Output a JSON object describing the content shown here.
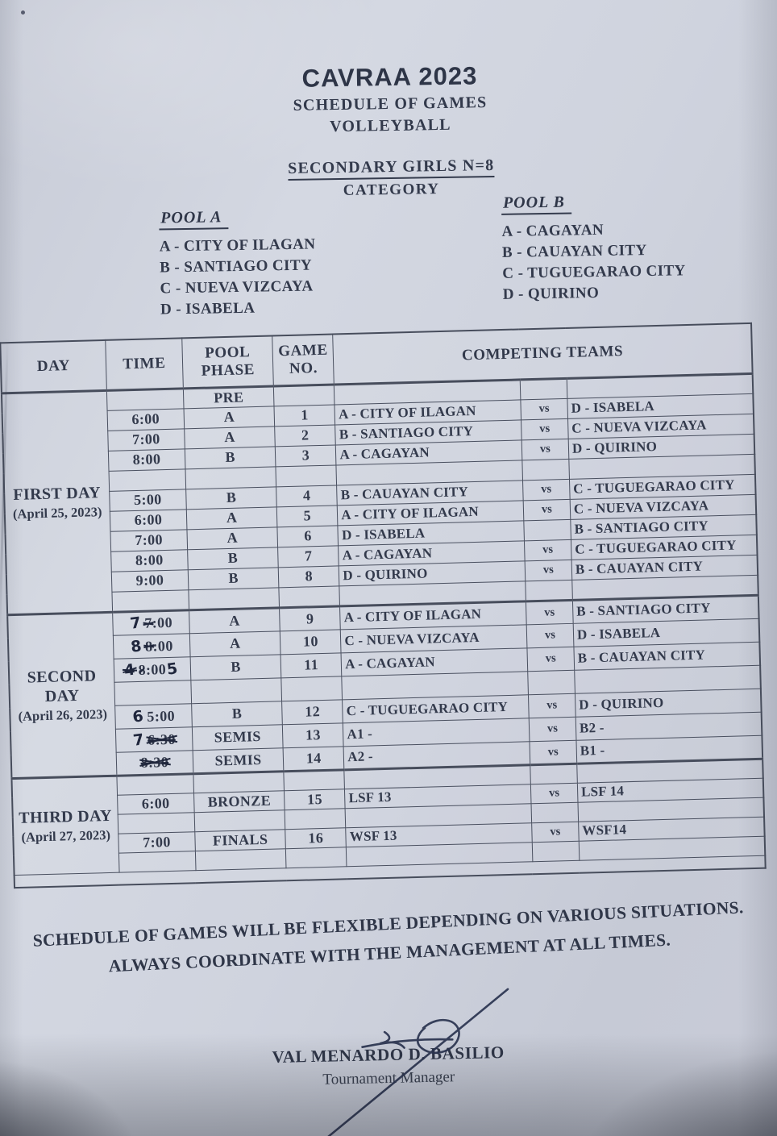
{
  "title": {
    "event": "CAVRAA 2023",
    "subtitle": "SCHEDULE OF GAMES",
    "sport": "VOLLEYBALL",
    "category": "SECONDARY GIRLS N=8",
    "category_word": "CATEGORY"
  },
  "pools": {
    "a": {
      "label": "POOL A",
      "teams": [
        "A - CITY OF ILAGAN",
        "B - SANTIAGO CITY",
        "C - NUEVA VIZCAYA",
        "D - ISABELA"
      ]
    },
    "b": {
      "label": "POOL B",
      "teams": [
        "A - CAGAYAN",
        "B - CAUAYAN CITY",
        "C - TUGUEGARAO CITY",
        "D - QUIRINO"
      ]
    }
  },
  "schedule_table": {
    "headers": {
      "day": "DAY",
      "time": "TIME",
      "phase": "POOL PHASE",
      "game": "GAME NO.",
      "teams": "COMPETING TEAMS"
    },
    "sections": [
      {
        "day": "FIRST DAY",
        "date": "(April 25, 2023)",
        "rows": [
          {
            "phase": "PRE"
          },
          {
            "time": "6:00",
            "phase": "A",
            "game": "1",
            "team1": "A - CITY OF ILAGAN",
            "vs": "vs",
            "team2": "D - ISABELA"
          },
          {
            "time": "7:00",
            "phase": "A",
            "game": "2",
            "team1": "B - SANTIAGO CITY",
            "vs": "vs",
            "team2": "C - NUEVA VIZCAYA"
          },
          {
            "time": "8:00",
            "phase": "B",
            "game": "3",
            "team1": "A - CAGAYAN",
            "vs": "vs",
            "team2": "D - QUIRINO"
          },
          {},
          {
            "time": "5:00",
            "phase": "B",
            "game": "4",
            "team1": "B - CAUAYAN CITY",
            "vs": "vs",
            "team2": "C - TUGUEGARAO CITY"
          },
          {
            "time": "6:00",
            "phase": "A",
            "game": "5",
            "team1": "A - CITY OF ILAGAN",
            "vs": "vs",
            "team2": "C - NUEVA VIZCAYA"
          },
          {
            "time": "7:00",
            "phase": "A",
            "game": "6",
            "team1": "D - ISABELA",
            "vs": "",
            "team2": "B - SANTIAGO CITY"
          },
          {
            "time": "8:00",
            "phase": "B",
            "game": "7",
            "team1": "A - CAGAYAN",
            "vs": "vs",
            "team2": "C - TUGUEGARAO CITY"
          },
          {
            "time": "9:00",
            "phase": "B",
            "game": "8",
            "team1": "D - QUIRINO",
            "vs": "vs",
            "team2": "B - CAUAYAN CITY"
          },
          {}
        ]
      },
      {
        "day": "SECOND DAY",
        "date": "(April 26, 2023)",
        "rows": [
          {
            "time_parts": [
              [
                "7",
                "hw"
              ],
              [
                "7",
                "ps"
              ],
              [
                ":00",
                "p"
              ]
            ],
            "phase": "A",
            "game": "9",
            "team1": "A - CITY OF ILAGAN",
            "vs": "vs",
            "team2": "B - SANTIAGO CITY"
          },
          {
            "time_parts": [
              [
                "8",
                "hw"
              ],
              [
                "8",
                "ps"
              ],
              [
                ":00",
                "p"
              ]
            ],
            "phase": "A",
            "game": "10",
            "team1": "C - NUEVA VIZCAYA",
            "vs": "vs",
            "team2": "D - ISABELA"
          },
          {
            "time_parts": [
              [
                "4",
                "hs"
              ],
              [
                "8",
                "px"
              ],
              [
                ":00",
                "p"
              ],
              [
                "5",
                "hw"
              ]
            ],
            "phase": "B",
            "game": "11",
            "team1": "A - CAGAYAN",
            "vs": "vs",
            "team2": "B - CAUAYAN CITY"
          },
          {},
          {
            "time_parts": [
              [
                "6",
                "hw"
              ],
              [
                "5:00",
                "p"
              ]
            ],
            "phase": "B",
            "game": "12",
            "team1": "C - TUGUEGARAO CITY",
            "vs": "vs",
            "team2": "D - QUIRINO"
          },
          {
            "time_parts": [
              [
                "7",
                "hw"
              ],
              [
                "6:30",
                "ps2"
              ]
            ],
            "phase": "SEMIS",
            "game": "13",
            "team1": "A1 -",
            "vs": "vs",
            "team2": "B2 -"
          },
          {
            "time_parts": [
              [
                "8:30",
                "ps2"
              ]
            ],
            "phase": "SEMIS",
            "game": "14",
            "team1": "A2 -",
            "vs": "vs",
            "team2": "B1 -"
          }
        ]
      },
      {
        "day": "THIRD DAY",
        "date": "(April 27, 2023)",
        "rows": [
          {},
          {
            "time": "6:00",
            "phase": "BRONZE",
            "game": "15",
            "team1": "LSF 13",
            "vs": "vs",
            "team2": "LSF 14"
          },
          {},
          {
            "time": "7:00",
            "phase": "FINALS",
            "game": "16",
            "team1": "WSF 13",
            "vs": "vs",
            "team2": "WSF14"
          },
          {}
        ]
      }
    ]
  },
  "footer_note": {
    "line1": "SCHEDULE OF GAMES WILL BE FLEXIBLE DEPENDING ON VARIOUS SITUATIONS.",
    "line2": "ALWAYS COORDINATE WITH THE MANAGEMENT AT ALL TIMES."
  },
  "signature": {
    "name": "VAL MENARDO D. BASILIO",
    "role": "Tournament Manager"
  }
}
